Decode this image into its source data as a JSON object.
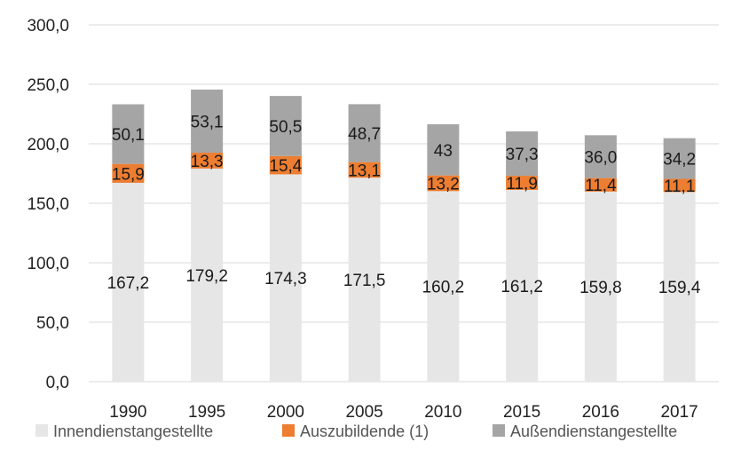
{
  "chart_data": {
    "type": "bar",
    "stacked": true,
    "title": "",
    "xlabel": "",
    "ylabel": "",
    "categories": [
      "1990",
      "1995",
      "2000",
      "2005",
      "2010",
      "2015",
      "2016",
      "2017"
    ],
    "ylim": [
      0,
      300
    ],
    "yticks": [
      "0,0",
      "50,0",
      "100,0",
      "150,0",
      "200,0",
      "250,0",
      "300,0"
    ],
    "ytick_values": [
      0,
      50,
      100,
      150,
      200,
      250,
      300
    ],
    "grid": true,
    "legend_position": "bottom",
    "series": [
      {
        "name": "Innendienstangestellte",
        "color": "#e6e6e6",
        "values": [
          167.2,
          179.2,
          174.3,
          171.5,
          160.2,
          161.2,
          159.8,
          159.4
        ],
        "labels": [
          "167,2",
          "179,2",
          "174,3",
          "171,5",
          "160,2",
          "161,2",
          "159,8",
          "159,4"
        ]
      },
      {
        "name": "Auszubildende (1)",
        "color": "#ed7d31",
        "values": [
          15.9,
          13.3,
          15.4,
          13.1,
          13.2,
          11.9,
          11.4,
          11.1
        ],
        "labels": [
          "15,9",
          "13,3",
          "15,4",
          "13,1",
          "13,2",
          "11,9",
          "11,4",
          "11,1"
        ]
      },
      {
        "name": "Außendienstangestellte",
        "color": "#a5a5a5",
        "values": [
          50.1,
          53.1,
          50.5,
          48.7,
          43,
          37.3,
          36.0,
          34.2
        ],
        "labels": [
          "50,1",
          "53,1",
          "50,5",
          "48,7",
          "43",
          "37,3",
          "36,0",
          "34,2"
        ]
      }
    ]
  }
}
